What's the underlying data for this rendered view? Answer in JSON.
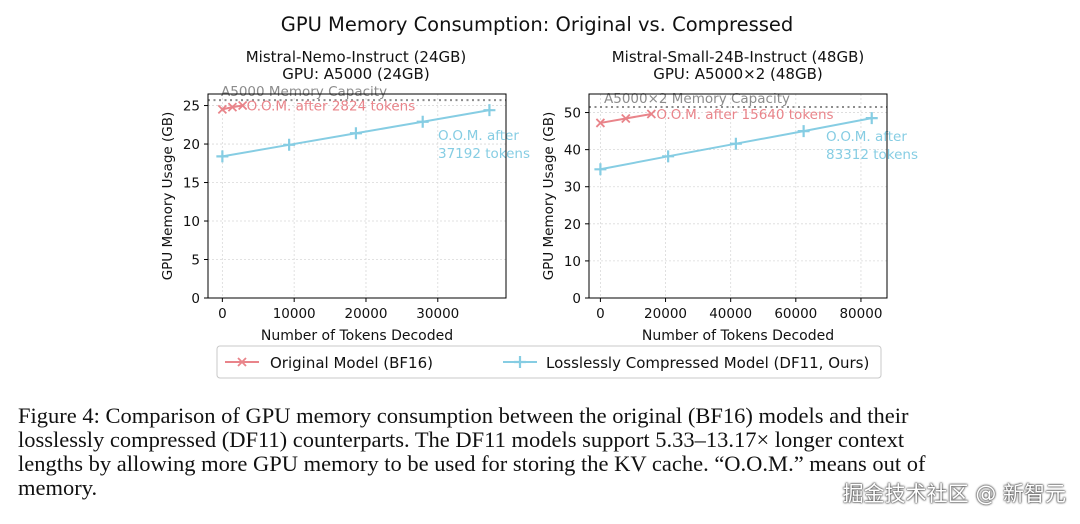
{
  "figure_title": "GPU Memory Consumption: Original vs. Compressed",
  "colors": {
    "original": "#e9848a",
    "compressed": "#86cde3",
    "capacity": "#8c8c8c",
    "grid": "#d9d9d9"
  },
  "legend": {
    "original": "Original Model (BF16)",
    "compressed": "Losslessly Compressed Model (DF11, Ours)"
  },
  "chart_data": [
    {
      "type": "line",
      "title": "Mistral-Nemo-Instruct (24GB)",
      "subtitle": "GPU: A5000 (24GB)",
      "xlabel": "Number of Tokens Decoded",
      "ylabel": "GPU Memory Usage (GB)",
      "xlim": [
        -2000,
        39500
      ],
      "ylim": [
        0,
        26.5
      ],
      "xticks": [
        0,
        10000,
        20000,
        30000
      ],
      "xtick_labels": [
        "0",
        "10000",
        "20000",
        "30000"
      ],
      "yticks": [
        0,
        5,
        10,
        15,
        20,
        25
      ],
      "ytick_labels": [
        "0",
        "5",
        "10",
        "15",
        "20",
        "25"
      ],
      "grid": true,
      "capacity_line": {
        "value": 25.7,
        "label": "A5000 Memory Capacity"
      },
      "series": [
        {
          "name": "Original Model (BF16)",
          "marker": "x",
          "x": [
            0,
            1400,
            2824
          ],
          "y": [
            24.5,
            24.8,
            25.0
          ]
        },
        {
          "name": "Losslessly Compressed Model (DF11, Ours)",
          "marker": "+",
          "x": [
            0,
            9300,
            18600,
            27900,
            37192
          ],
          "y": [
            18.4,
            19.9,
            21.4,
            22.9,
            24.4
          ]
        }
      ],
      "annotations": {
        "original_oom": "O.O.M. after 2824 tokens",
        "compressed_oom_1": "O.O.M. after",
        "compressed_oom_2": "37192 tokens"
      }
    },
    {
      "type": "line",
      "title": "Mistral-Small-24B-Instruct (48GB)",
      "subtitle": "GPU: A5000×2 (48GB)",
      "xlabel": "Number of Tokens Decoded",
      "ylabel": "GPU Memory Usage (GB)",
      "xlim": [
        -3500,
        88000
      ],
      "ylim": [
        0,
        55
      ],
      "xticks": [
        0,
        20000,
        40000,
        60000,
        80000
      ],
      "xtick_labels": [
        "0",
        "20000",
        "40000",
        "60000",
        "80000"
      ],
      "yticks": [
        0,
        10,
        20,
        30,
        40,
        50
      ],
      "ytick_labels": [
        "0",
        "10",
        "20",
        "30",
        "40",
        "50"
      ],
      "grid": true,
      "capacity_line": {
        "value": 51.5,
        "label": "A5000×2 Memory Capacity"
      },
      "series": [
        {
          "name": "Original Model (BF16)",
          "marker": "x",
          "x": [
            0,
            7800,
            15640
          ],
          "y": [
            47.2,
            48.4,
            49.6
          ]
        },
        {
          "name": "Losslessly Compressed Model (DF11, Ours)",
          "marker": "+",
          "x": [
            0,
            20800,
            41600,
            62400,
            83312
          ],
          "y": [
            34.7,
            38.2,
            41.6,
            45.0,
            48.5
          ]
        }
      ],
      "annotations": {
        "original_oom": "O.O.M. after 15640 tokens",
        "compressed_oom_1": "O.O.M. after",
        "compressed_oom_2": "83312 tokens"
      }
    }
  ],
  "caption": {
    "line1": "Figure 4: Comparison of GPU memory consumption between the original (BF16) models and their",
    "line2": "losslessly compressed (DF11) counterparts. The DF11 models support 5.33–13.17× longer context",
    "line3": "lengths by allowing more GPU memory to be used for storing the KV cache. “O.O.M.” means out of",
    "line4": "memory."
  },
  "watermark": "掘金技术社区 @ 新智元"
}
